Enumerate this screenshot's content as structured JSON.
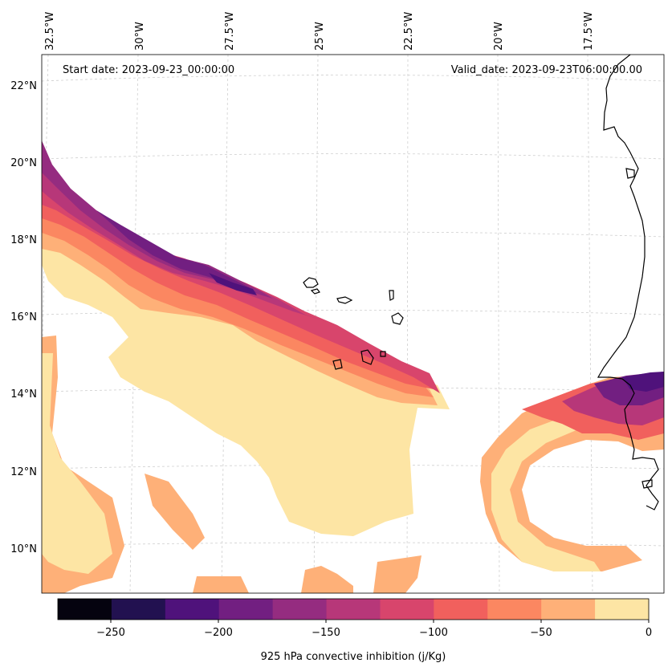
{
  "map": {
    "start_label": "Start date: 2023-09-23_00:00:00",
    "valid_label": "Valid_date: 2023-09-23T06:00:00.00",
    "lon_ticks": [
      "32.5°W",
      "30°W",
      "27.5°W",
      "25°W",
      "22.5°W",
      "20°W",
      "17.5°W"
    ],
    "lat_ticks": [
      "22°N",
      "20°N",
      "18°N",
      "16°N",
      "14°N",
      "12°N",
      "10°N"
    ],
    "land_outline": "coastline (West Africa) and Cape Verde islands",
    "gridlines": true
  },
  "colorbar": {
    "label": "925 hPa convective inhibition (j/Kg)",
    "ticks": [
      "−250",
      "−200",
      "−150",
      "−100",
      "−50",
      "0"
    ],
    "levels": [
      -275,
      -250,
      -225,
      -200,
      -175,
      -150,
      -125,
      -100,
      -75,
      -50,
      -25,
      0
    ],
    "colors": [
      "#05030f",
      "#221150",
      "#4f127b",
      "#721f81",
      "#952c80",
      "#b73779",
      "#d8456c",
      "#f1605d",
      "#fb8761",
      "#feb078",
      "#fde5a4"
    ]
  }
}
